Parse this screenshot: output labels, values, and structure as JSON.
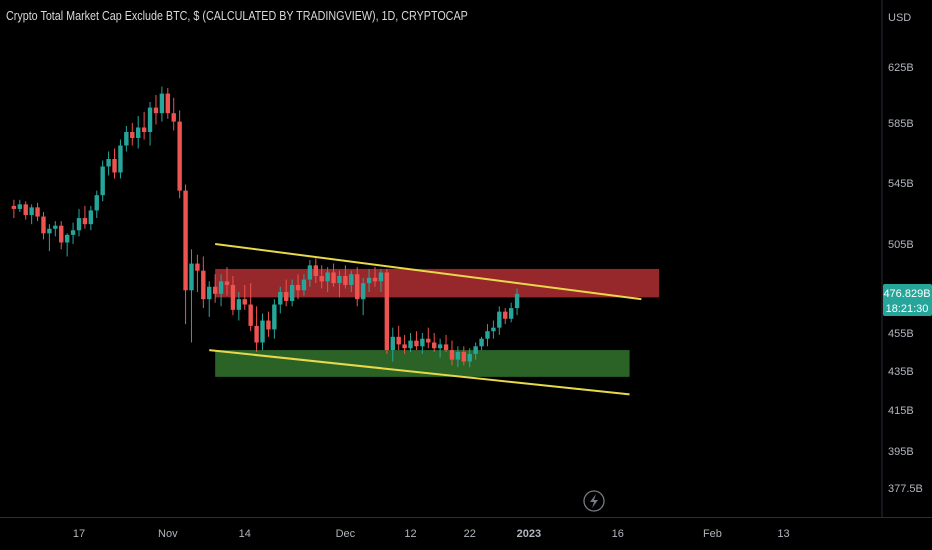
{
  "title": "Crypto Total Market Cap Exclude BTC, $ (CALCULATED BY TRADINGVIEW), 1D, CRYPTOCAP",
  "currency": "USD",
  "price_label": {
    "value": "476.829B",
    "countdown": "18:21:30",
    "color": "#26a69a"
  },
  "flash_icon": "lightning-icon",
  "colors": {
    "up": "#26a69a",
    "down": "#ef5350",
    "trendline": "#e8d84a",
    "resistance_zone": "#a32a2f",
    "support_zone": "#2f6b2a",
    "background": "#000000"
  },
  "chart_data": {
    "type": "candlestick",
    "y_axis": {
      "unit": "B",
      "ticks": [
        625,
        585,
        545,
        505,
        455,
        435,
        415,
        395,
        377.5
      ],
      "tick_labels": [
        "625B",
        "585B",
        "545B",
        "505B",
        "455B",
        "435B",
        "415B",
        "395B",
        "377.5B"
      ]
    },
    "x_axis": {
      "tick_labels": [
        "17",
        "Nov",
        "14",
        "Dec",
        "12",
        "22",
        "2023",
        "16",
        "Feb",
        "13"
      ],
      "tick_dates": [
        "2022-10-17",
        "2022-11-01",
        "2022-11-14",
        "2022-12-01",
        "2022-12-12",
        "2022-12-22",
        "2023-01-01",
        "2023-01-16",
        "2023-02-01",
        "2023-02-13"
      ]
    },
    "start_date": "2022-10-06",
    "candles": [
      [
        530,
        534,
        522,
        528
      ],
      [
        528,
        534,
        526,
        531
      ],
      [
        531,
        533,
        521,
        524
      ],
      [
        524,
        531,
        518,
        529
      ],
      [
        529,
        532,
        520,
        523
      ],
      [
        523,
        526,
        508,
        512
      ],
      [
        512,
        518,
        501,
        515
      ],
      [
        515,
        520,
        510,
        517
      ],
      [
        517,
        520,
        502,
        506
      ],
      [
        506,
        512,
        498,
        511
      ],
      [
        511,
        519,
        505,
        514
      ],
      [
        514,
        528,
        510,
        522
      ],
      [
        522,
        530,
        515,
        518
      ],
      [
        518,
        530,
        514,
        527
      ],
      [
        527,
        540,
        522,
        537
      ],
      [
        537,
        560,
        533,
        556
      ],
      [
        556,
        566,
        550,
        561
      ],
      [
        561,
        568,
        548,
        552
      ],
      [
        552,
        574,
        548,
        570
      ],
      [
        570,
        583,
        566,
        579
      ],
      [
        579,
        585,
        570,
        575
      ],
      [
        575,
        590,
        568,
        582
      ],
      [
        582,
        593,
        574,
        579
      ],
      [
        579,
        600,
        570,
        596
      ],
      [
        596,
        605,
        584,
        592
      ],
      [
        592,
        611,
        586,
        606
      ],
      [
        606,
        610,
        588,
        592
      ],
      [
        592,
        603,
        580,
        586
      ],
      [
        586,
        594,
        535,
        540
      ],
      [
        540,
        544,
        460,
        479
      ],
      [
        479,
        502,
        450,
        494
      ],
      [
        494,
        499,
        478,
        490
      ],
      [
        490,
        498,
        469,
        474
      ],
      [
        474,
        484,
        464,
        481
      ],
      [
        481,
        488,
        472,
        477
      ],
      [
        477,
        488,
        470,
        484
      ],
      [
        484,
        492,
        476,
        482
      ],
      [
        482,
        487,
        465,
        468
      ],
      [
        468,
        478,
        462,
        474
      ],
      [
        474,
        482,
        468,
        471
      ],
      [
        471,
        483,
        456,
        459
      ],
      [
        459,
        470,
        445,
        450
      ],
      [
        450,
        466,
        446,
        462
      ],
      [
        462,
        467,
        453,
        457
      ],
      [
        457,
        474,
        452,
        471
      ],
      [
        471,
        481,
        466,
        478
      ],
      [
        478,
        485,
        470,
        473
      ],
      [
        473,
        485,
        470,
        482
      ],
      [
        482,
        488,
        474,
        479
      ],
      [
        479,
        488,
        476,
        485
      ],
      [
        485,
        496,
        481,
        493
      ],
      [
        493,
        497,
        483,
        487
      ],
      [
        487,
        493,
        480,
        484
      ],
      [
        484,
        492,
        478,
        489
      ],
      [
        489,
        494,
        481,
        483
      ],
      [
        483,
        490,
        475,
        487
      ],
      [
        487,
        493,
        480,
        482
      ],
      [
        482,
        490,
        478,
        488
      ],
      [
        488,
        492,
        470,
        474
      ],
      [
        474,
        486,
        465,
        483
      ],
      [
        483,
        491,
        478,
        486
      ],
      [
        486,
        492,
        481,
        484
      ],
      [
        484,
        491,
        478,
        489
      ],
      [
        489,
        491,
        444,
        446
      ],
      [
        446,
        458,
        440,
        453
      ],
      [
        453,
        459,
        446,
        449
      ],
      [
        449,
        454,
        444,
        447
      ],
      [
        447,
        455,
        445,
        451
      ],
      [
        451,
        456,
        446,
        448
      ],
      [
        448,
        455,
        444,
        452
      ],
      [
        452,
        458,
        447,
        450
      ],
      [
        450,
        455,
        445,
        447
      ],
      [
        447,
        452,
        442,
        449
      ],
      [
        449,
        454,
        445,
        446
      ],
      [
        446,
        451,
        438,
        441
      ],
      [
        441,
        448,
        437,
        445
      ],
      [
        445,
        448,
        438,
        440
      ],
      [
        440,
        447,
        437,
        444
      ],
      [
        444,
        450,
        441,
        448
      ],
      [
        448,
        453,
        446,
        452
      ],
      [
        452,
        460,
        448,
        456
      ],
      [
        456,
        462,
        452,
        458
      ],
      [
        458,
        470,
        454,
        467
      ],
      [
        467,
        469,
        460,
        463
      ],
      [
        463,
        472,
        461,
        469
      ],
      [
        469,
        480,
        465,
        477
      ]
    ],
    "annotations": [
      {
        "type": "trendline",
        "label": "upper",
        "from": [
          "2022-11-09",
          505
        ],
        "to": [
          "2023-01-20",
          474
        ]
      },
      {
        "type": "trendline",
        "label": "lower",
        "from": [
          "2022-11-08",
          446
        ],
        "to": [
          "2023-01-18",
          423
        ]
      },
      {
        "type": "zone",
        "label": "resistance",
        "from_date": "2022-11-09",
        "to_date": "2023-01-23",
        "y_low": 475,
        "y_high": 491
      },
      {
        "type": "zone",
        "label": "support",
        "from_date": "2022-11-09",
        "to_date": "2023-01-18",
        "y_low": 432,
        "y_high": 446
      }
    ]
  }
}
